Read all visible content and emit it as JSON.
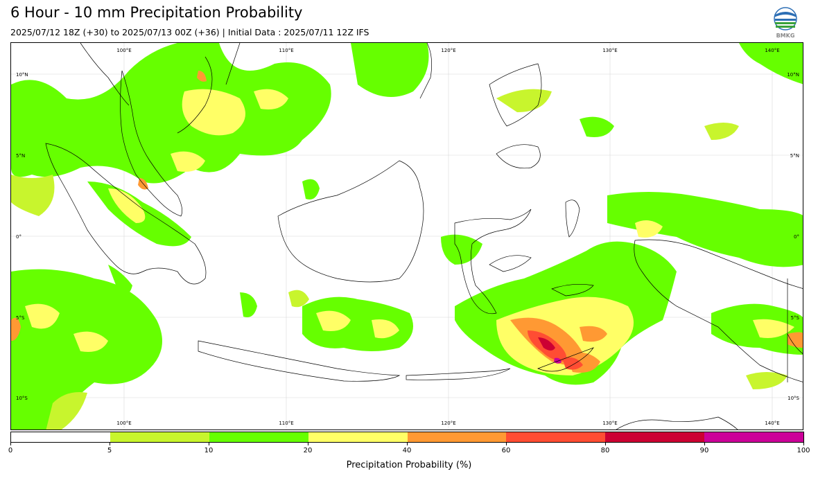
{
  "header": {
    "title": "6 Hour - 10 mm Precipitation Probability",
    "subtitle": "2025/07/12 18Z (+30) to 2025/07/13 00Z (+36) | Initial Data : 2025/07/11 12Z IFS",
    "logo_text": "BMKG"
  },
  "map": {
    "lon_labels_top": [
      "100°E",
      "110°E",
      "120°E",
      "130°E",
      "140°E"
    ],
    "lon_labels_bottom": [
      "100°E",
      "110°E",
      "120°E",
      "130°E",
      "140°E"
    ],
    "lat_labels_left": [
      "10°N",
      "5°N",
      "0°",
      "5°S",
      "10°S"
    ],
    "lat_labels_right": [
      "10°N",
      "5°N",
      "0°",
      "5°S",
      "10°S"
    ]
  },
  "colorbar": {
    "label": "Precipitation Probability (%)",
    "ticks": [
      "0",
      "5",
      "10",
      "20",
      "40",
      "60",
      "80",
      "90",
      "100"
    ],
    "colors": [
      "#ffffff",
      "#c8f52d",
      "#66ff00",
      "#ffff66",
      "#ff9933",
      "#ff4d33",
      "#cc0033",
      "#cc0099"
    ]
  }
}
